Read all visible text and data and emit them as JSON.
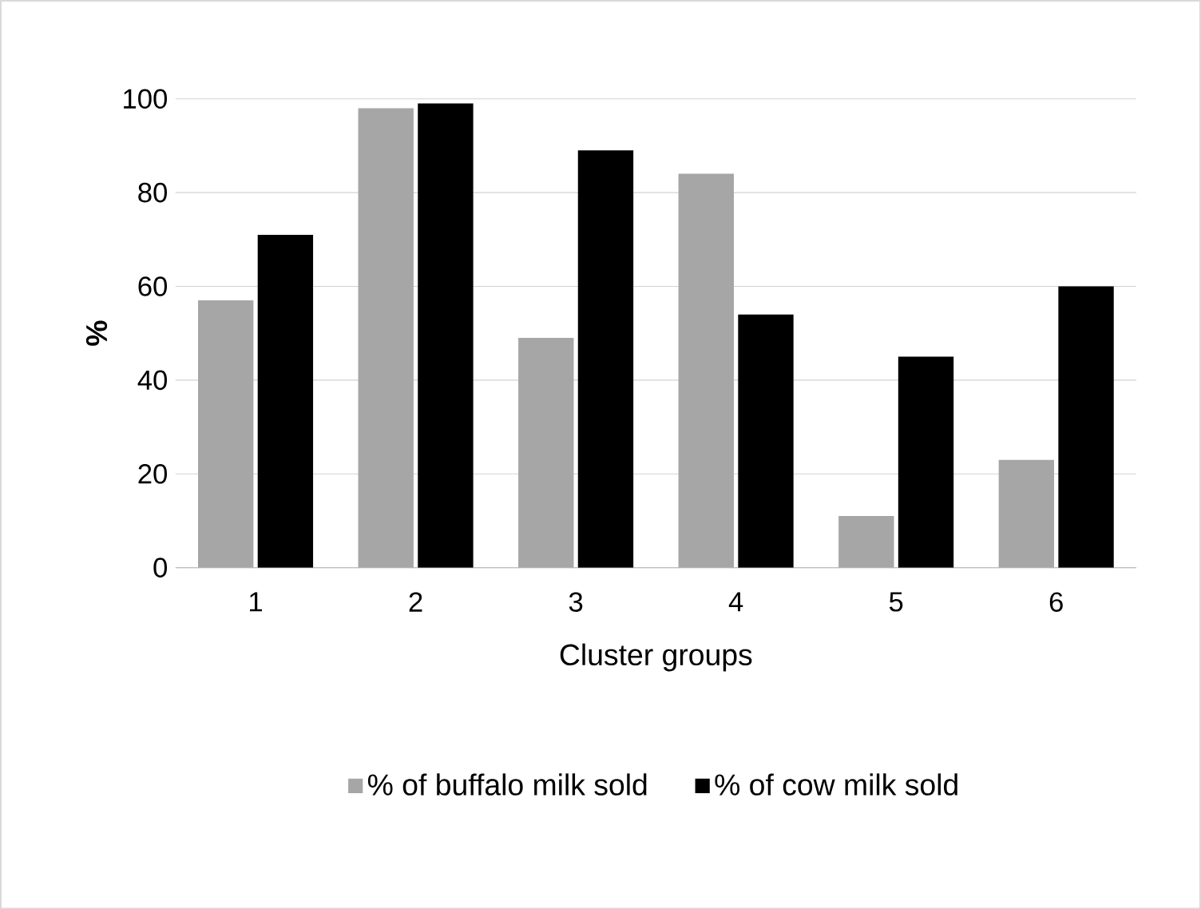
{
  "chart_data": {
    "type": "bar",
    "xlabel": "Cluster groups",
    "ylabel": "%",
    "categories": [
      "1",
      "2",
      "3",
      "4",
      "5",
      "6"
    ],
    "series": [
      {
        "name": "% of buffalo milk sold",
        "color": "#a6a6a6",
        "values": [
          57,
          98,
          49,
          84,
          11,
          23
        ]
      },
      {
        "name": "% of cow milk sold",
        "color": "#000000",
        "values": [
          71,
          99,
          89,
          54,
          45,
          60
        ]
      }
    ],
    "ylim": [
      0,
      100
    ],
    "yticks": [
      0,
      20,
      40,
      60,
      80,
      100
    ],
    "grid": "y",
    "legend": "bottom"
  }
}
